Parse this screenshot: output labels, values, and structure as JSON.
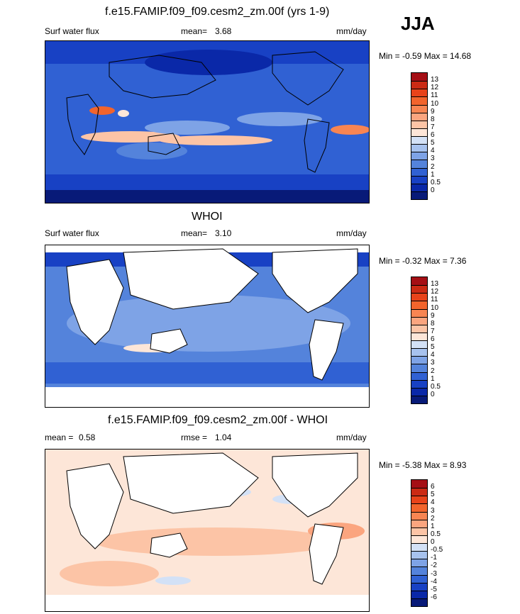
{
  "season": "JJA",
  "units": "mm/day",
  "chart_data": [
    {
      "type": "heatmap",
      "title": "f.e15.FAMIP.f09_f09.cesm2_zm.00f (yrs 1-9)",
      "variable": "Surf water flux",
      "mean_label": "mean=",
      "mean": "3.68",
      "minmax": "Min = -0.59 Max = 14.68",
      "min": -0.59,
      "max": 14.68,
      "levels": [
        "13",
        "12",
        "11",
        "10",
        "9",
        "8",
        "7",
        "6",
        "5",
        "4",
        "3",
        "2",
        "1",
        "0.5",
        "0"
      ],
      "colors": [
        "#a50f15",
        "#cb2a14",
        "#e8431a",
        "#f2642c",
        "#f88552",
        "#fba57f",
        "#fcc4a6",
        "#fde6d8",
        "#d3e1f6",
        "#a7c2ee",
        "#7ea3e6",
        "#5483db",
        "#3061d3",
        "#1841c4",
        "#0a28a8",
        "#081a78"
      ]
    },
    {
      "type": "heatmap",
      "title": "WHOI",
      "variable": "Surf water flux",
      "mean_label": "mean=",
      "mean": "3.10",
      "minmax": "Min = -0.32 Max = 7.36",
      "min": -0.32,
      "max": 7.36,
      "levels": [
        "13",
        "12",
        "11",
        "10",
        "9",
        "8",
        "7",
        "6",
        "5",
        "4",
        "3",
        "2",
        "1",
        "0.5",
        "0"
      ],
      "colors": [
        "#a50f15",
        "#cb2a14",
        "#e8431a",
        "#f2642c",
        "#f88552",
        "#fba57f",
        "#fcc4a6",
        "#fde6d8",
        "#d3e1f6",
        "#a7c2ee",
        "#7ea3e6",
        "#5483db",
        "#3061d3",
        "#1841c4",
        "#0a28a8",
        "#081a78"
      ]
    },
    {
      "type": "heatmap",
      "title": "f.e15.FAMIP.f09_f09.cesm2_zm.00f - WHOI",
      "variable": "",
      "mean_label": "mean =",
      "mean": "0.58",
      "rmse_label": "rmse =",
      "rmse": "1.04",
      "minmax": "Min = -5.38 Max = 8.93",
      "min": -5.38,
      "max": 8.93,
      "levels": [
        "6",
        "5",
        "4",
        "3",
        "2",
        "1",
        "0.5",
        "0",
        "-0.5",
        "-1",
        "-2",
        "-3",
        "-4",
        "-5",
        "-6"
      ],
      "colors": [
        "#a50f15",
        "#cb2a14",
        "#e8431a",
        "#f2642c",
        "#f88552",
        "#fba57f",
        "#fcc4a6",
        "#fde6d8",
        "#d3e1f6",
        "#a7c2ee",
        "#7ea3e6",
        "#5483db",
        "#3061d3",
        "#1841c4",
        "#0a28a8",
        "#081a78"
      ]
    }
  ]
}
